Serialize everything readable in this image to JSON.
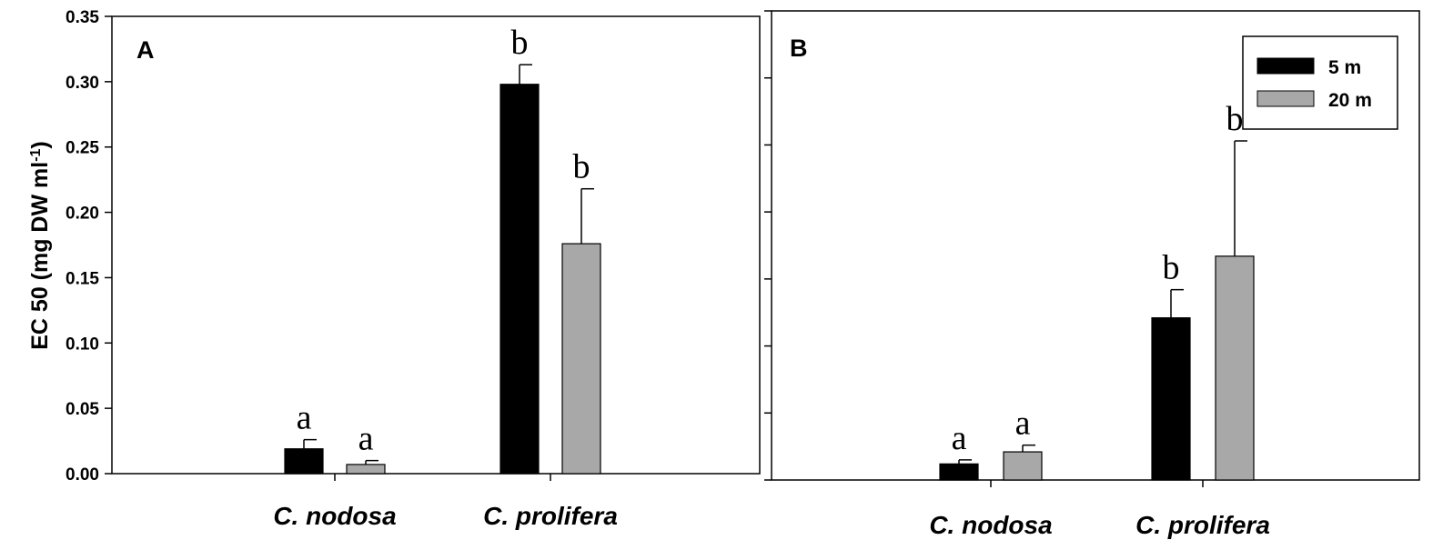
{
  "chart_data": [
    {
      "type": "bar",
      "panel_label": "A",
      "categories": [
        "C. nodosa",
        "C. prolifera"
      ],
      "ylabel": "EC 50 (mg DW ml",
      "ylabel_sup": "-1",
      "ylabel_close": ")",
      "ylim": [
        0,
        0.35
      ],
      "yticks": [
        "0.00",
        "0.05",
        "0.10",
        "0.15",
        "0.20",
        "0.25",
        "0.30",
        "0.35"
      ],
      "grid": false,
      "series": [
        {
          "name": "5 m",
          "color": "#000000",
          "values": [
            0.019,
            0.298
          ],
          "errors": [
            0.007,
            0.015
          ],
          "letters": [
            "a",
            "b"
          ]
        },
        {
          "name": "20 m",
          "color": "#a8a8a8",
          "values": [
            0.007,
            0.176
          ],
          "errors": [
            0.003,
            0.042
          ],
          "letters": [
            "a",
            "b"
          ]
        }
      ]
    },
    {
      "type": "bar",
      "panel_label": "B",
      "categories": [
        "C. nodosa",
        "C. prolifera"
      ],
      "ylim": [
        0,
        0.35
      ],
      "grid": false,
      "legend_position": "top-right",
      "series": [
        {
          "name": "5 m",
          "color": "#000000",
          "values": [
            0.012,
            0.121
          ],
          "errors": [
            0.003,
            0.021
          ],
          "letters": [
            "a",
            "b"
          ]
        },
        {
          "name": "20 m",
          "color": "#a8a8a8",
          "values": [
            0.021,
            0.167
          ],
          "errors": [
            0.005,
            0.086
          ],
          "letters": [
            "a",
            "b"
          ]
        }
      ]
    }
  ]
}
